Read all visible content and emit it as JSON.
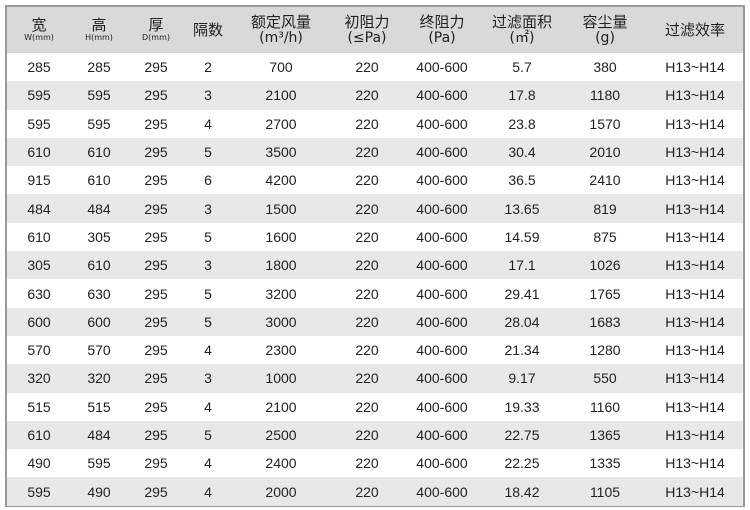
{
  "headers": [
    {
      "main": "宽",
      "sub": "W(mm)"
    },
    {
      "main": "高",
      "sub": "H(mm)"
    },
    {
      "main": "厚",
      "sub": "D(mm)"
    },
    {
      "main": "隔数",
      "sub": ""
    },
    {
      "main": "额定风量",
      "sub": "(m³/h)"
    },
    {
      "main": "初阻力",
      "sub": "(≤Pa)"
    },
    {
      "main": "终阻力",
      "sub": "(Pa)"
    },
    {
      "main": "过滤面积",
      "sub": "(㎡)"
    },
    {
      "main": "容尘量",
      "sub": "(g)"
    },
    {
      "main": "过滤效率",
      "sub": ""
    }
  ],
  "rows": [
    [
      "285",
      "285",
      "295",
      "2",
      "700",
      "220",
      "400-600",
      "5.7",
      "380",
      "H13~H14"
    ],
    [
      "595",
      "595",
      "295",
      "3",
      "2100",
      "220",
      "400-600",
      "17.8",
      "1180",
      "H13~H14"
    ],
    [
      "595",
      "595",
      "295",
      "4",
      "2700",
      "220",
      "400-600",
      "23.8",
      "1570",
      "H13~H14"
    ],
    [
      "610",
      "610",
      "295",
      "5",
      "3500",
      "220",
      "400-600",
      "30.4",
      "2010",
      "H13~H14"
    ],
    [
      "915",
      "610",
      "295",
      "6",
      "4200",
      "220",
      "400-600",
      "36.5",
      "2410",
      "H13~H14"
    ],
    [
      "484",
      "484",
      "295",
      "3",
      "1500",
      "220",
      "400-600",
      "13.65",
      "819",
      "H13~H14"
    ],
    [
      "610",
      "305",
      "295",
      "5",
      "1600",
      "220",
      "400-600",
      "14.59",
      "875",
      "H13~H14"
    ],
    [
      "305",
      "610",
      "295",
      "3",
      "1800",
      "220",
      "400-600",
      "17.1",
      "1026",
      "H13~H14"
    ],
    [
      "630",
      "630",
      "295",
      "5",
      "3200",
      "220",
      "400-600",
      "29.41",
      "1765",
      "H13~H14"
    ],
    [
      "600",
      "600",
      "295",
      "5",
      "3000",
      "220",
      "400-600",
      "28.04",
      "1683",
      "H13~H14"
    ],
    [
      "570",
      "570",
      "295",
      "4",
      "2300",
      "220",
      "400-600",
      "21.34",
      "1280",
      "H13~H14"
    ],
    [
      "320",
      "320",
      "295",
      "3",
      "1000",
      "220",
      "400-600",
      "9.17",
      "550",
      "H13~H14"
    ],
    [
      "515",
      "515",
      "295",
      "4",
      "2100",
      "220",
      "400-600",
      "19.33",
      "1160",
      "H13~H14"
    ],
    [
      "610",
      "484",
      "295",
      "5",
      "2500",
      "220",
      "400-600",
      "22.75",
      "1365",
      "H13~H14"
    ],
    [
      "490",
      "595",
      "295",
      "4",
      "2400",
      "220",
      "400-600",
      "22.25",
      "1335",
      "H13~H14"
    ],
    [
      "595",
      "490",
      "295",
      "4",
      "2000",
      "220",
      "400-600",
      "18.42",
      "1105",
      "H13~H14"
    ]
  ]
}
